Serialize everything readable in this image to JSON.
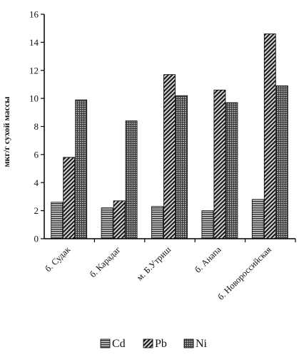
{
  "chart_data": {
    "type": "bar",
    "ylabel": "мкг/г сухой массы",
    "ylim": [
      0,
      16
    ],
    "yticks": [
      0,
      2,
      4,
      6,
      8,
      10,
      12,
      14,
      16
    ],
    "grid": false,
    "legend_position": "bottom-center",
    "categories": [
      "б. Судак",
      "б. Карадаг",
      "м. Б.Утриш",
      "б. Анапа",
      "б. Новороссийская"
    ],
    "series": [
      {
        "name": "Cd",
        "values": [
          2.6,
          2.2,
          2.3,
          2.0,
          2.8
        ],
        "color": "#5a5a5a",
        "pattern": "horizontal-lines"
      },
      {
        "name": "Pb",
        "values": [
          5.8,
          2.7,
          11.7,
          10.6,
          14.6
        ],
        "color": "#2a2a2a",
        "pattern": "diagonal-lines"
      },
      {
        "name": "Ni",
        "values": [
          9.9,
          8.4,
          10.2,
          9.7,
          10.9
        ],
        "color": "#444444",
        "pattern": "crosshatch"
      }
    ]
  }
}
